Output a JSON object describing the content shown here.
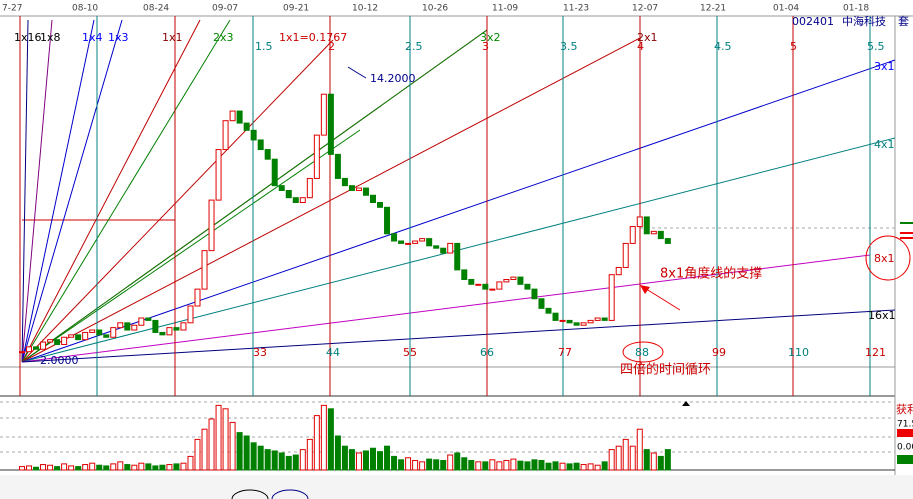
{
  "header": {
    "code": "002401",
    "name": "中海科技",
    "cut": "套"
  },
  "dates": [
    "7-27",
    "08-10",
    "08-24",
    "09-07",
    "09-21",
    "10-12",
    "10-26",
    "11-09",
    "11-23",
    "12-07",
    "12-21",
    "01-04",
    "01-18"
  ],
  "fan_labels": [
    "1x16",
    "1x8",
    "1x4",
    "1x3",
    "1x1",
    "2x3",
    "1x1=0.1767",
    "3x2",
    "2x1",
    "3x1",
    "4x1",
    "8x1",
    "16x1"
  ],
  "time_ratios": [
    "1.5",
    "2",
    "2.5",
    "3",
    "3.5",
    "4",
    "4.5",
    "5",
    "5.5"
  ],
  "cycles": [
    "33",
    "44",
    "55",
    "66",
    "77",
    "88",
    "99",
    "110",
    "121"
  ],
  "high_label": "14.2000",
  "low_label": "2.0000",
  "annotations": {
    "support": "8x1角度线的支撑",
    "cycle": "四倍的时间循环"
  },
  "side_panel": {
    "title": "获利",
    "value": "71.5",
    "zero": "0.00"
  },
  "chart": {
    "type": "candlestick",
    "close": [
      2.4,
      2.6,
      2.5,
      2.8,
      2.9,
      2.7,
      3.0,
      3.1,
      2.9,
      3.2,
      3.3,
      3.1,
      3.0,
      3.4,
      3.6,
      3.3,
      3.5,
      3.8,
      3.7,
      3.2,
      3.1,
      3.4,
      3.3,
      3.6,
      4.3,
      5.0,
      6.6,
      8.7,
      10.8,
      12.0,
      12.4,
      11.9,
      11.6,
      11.2,
      10.8,
      10.4,
      9.3,
      9.1,
      8.8,
      8.6,
      8.8,
      9.6,
      11.4,
      13.1,
      10.6,
      9.6,
      9.3,
      9.1,
      9.2,
      8.9,
      8.6,
      8.4,
      7.3,
      7.0,
      6.9,
      6.9,
      7.0,
      7.1,
      6.8,
      6.7,
      6.5,
      6.9,
      5.8,
      5.4,
      5.2,
      5.2,
      5.0,
      5.0,
      5.3,
      5.4,
      5.5,
      5.2,
      5.0,
      4.6,
      4.2,
      4.0,
      3.7,
      3.7,
      3.6,
      3.5,
      3.6,
      3.7,
      3.8,
      3.7,
      5.6,
      5.9,
      6.9,
      7.6,
      8.0,
      7.3,
      7.4,
      7.1,
      6.9
    ],
    "volume": [
      5,
      6,
      4,
      8,
      7,
      5,
      9,
      6,
      5,
      8,
      10,
      7,
      6,
      9,
      12,
      8,
      7,
      10,
      9,
      6,
      7,
      8,
      9,
      10,
      20,
      45,
      60,
      75,
      95,
      90,
      70,
      55,
      50,
      40,
      35,
      30,
      28,
      25,
      20,
      22,
      30,
      45,
      80,
      95,
      90,
      50,
      35,
      30,
      25,
      28,
      32,
      27,
      35,
      20,
      15,
      18,
      14,
      12,
      16,
      15,
      14,
      22,
      25,
      18,
      14,
      12,
      12,
      15,
      12,
      14,
      16,
      13,
      12,
      15,
      14,
      10,
      12,
      10,
      9,
      10,
      8,
      9,
      7,
      12,
      30,
      35,
      45,
      35,
      60,
      30,
      25,
      20,
      30
    ],
    "ylim": [
      0.6,
      16.6
    ],
    "vlim": [
      0,
      100
    ],
    "up_color": "#e00000",
    "down_color": "#008000"
  }
}
